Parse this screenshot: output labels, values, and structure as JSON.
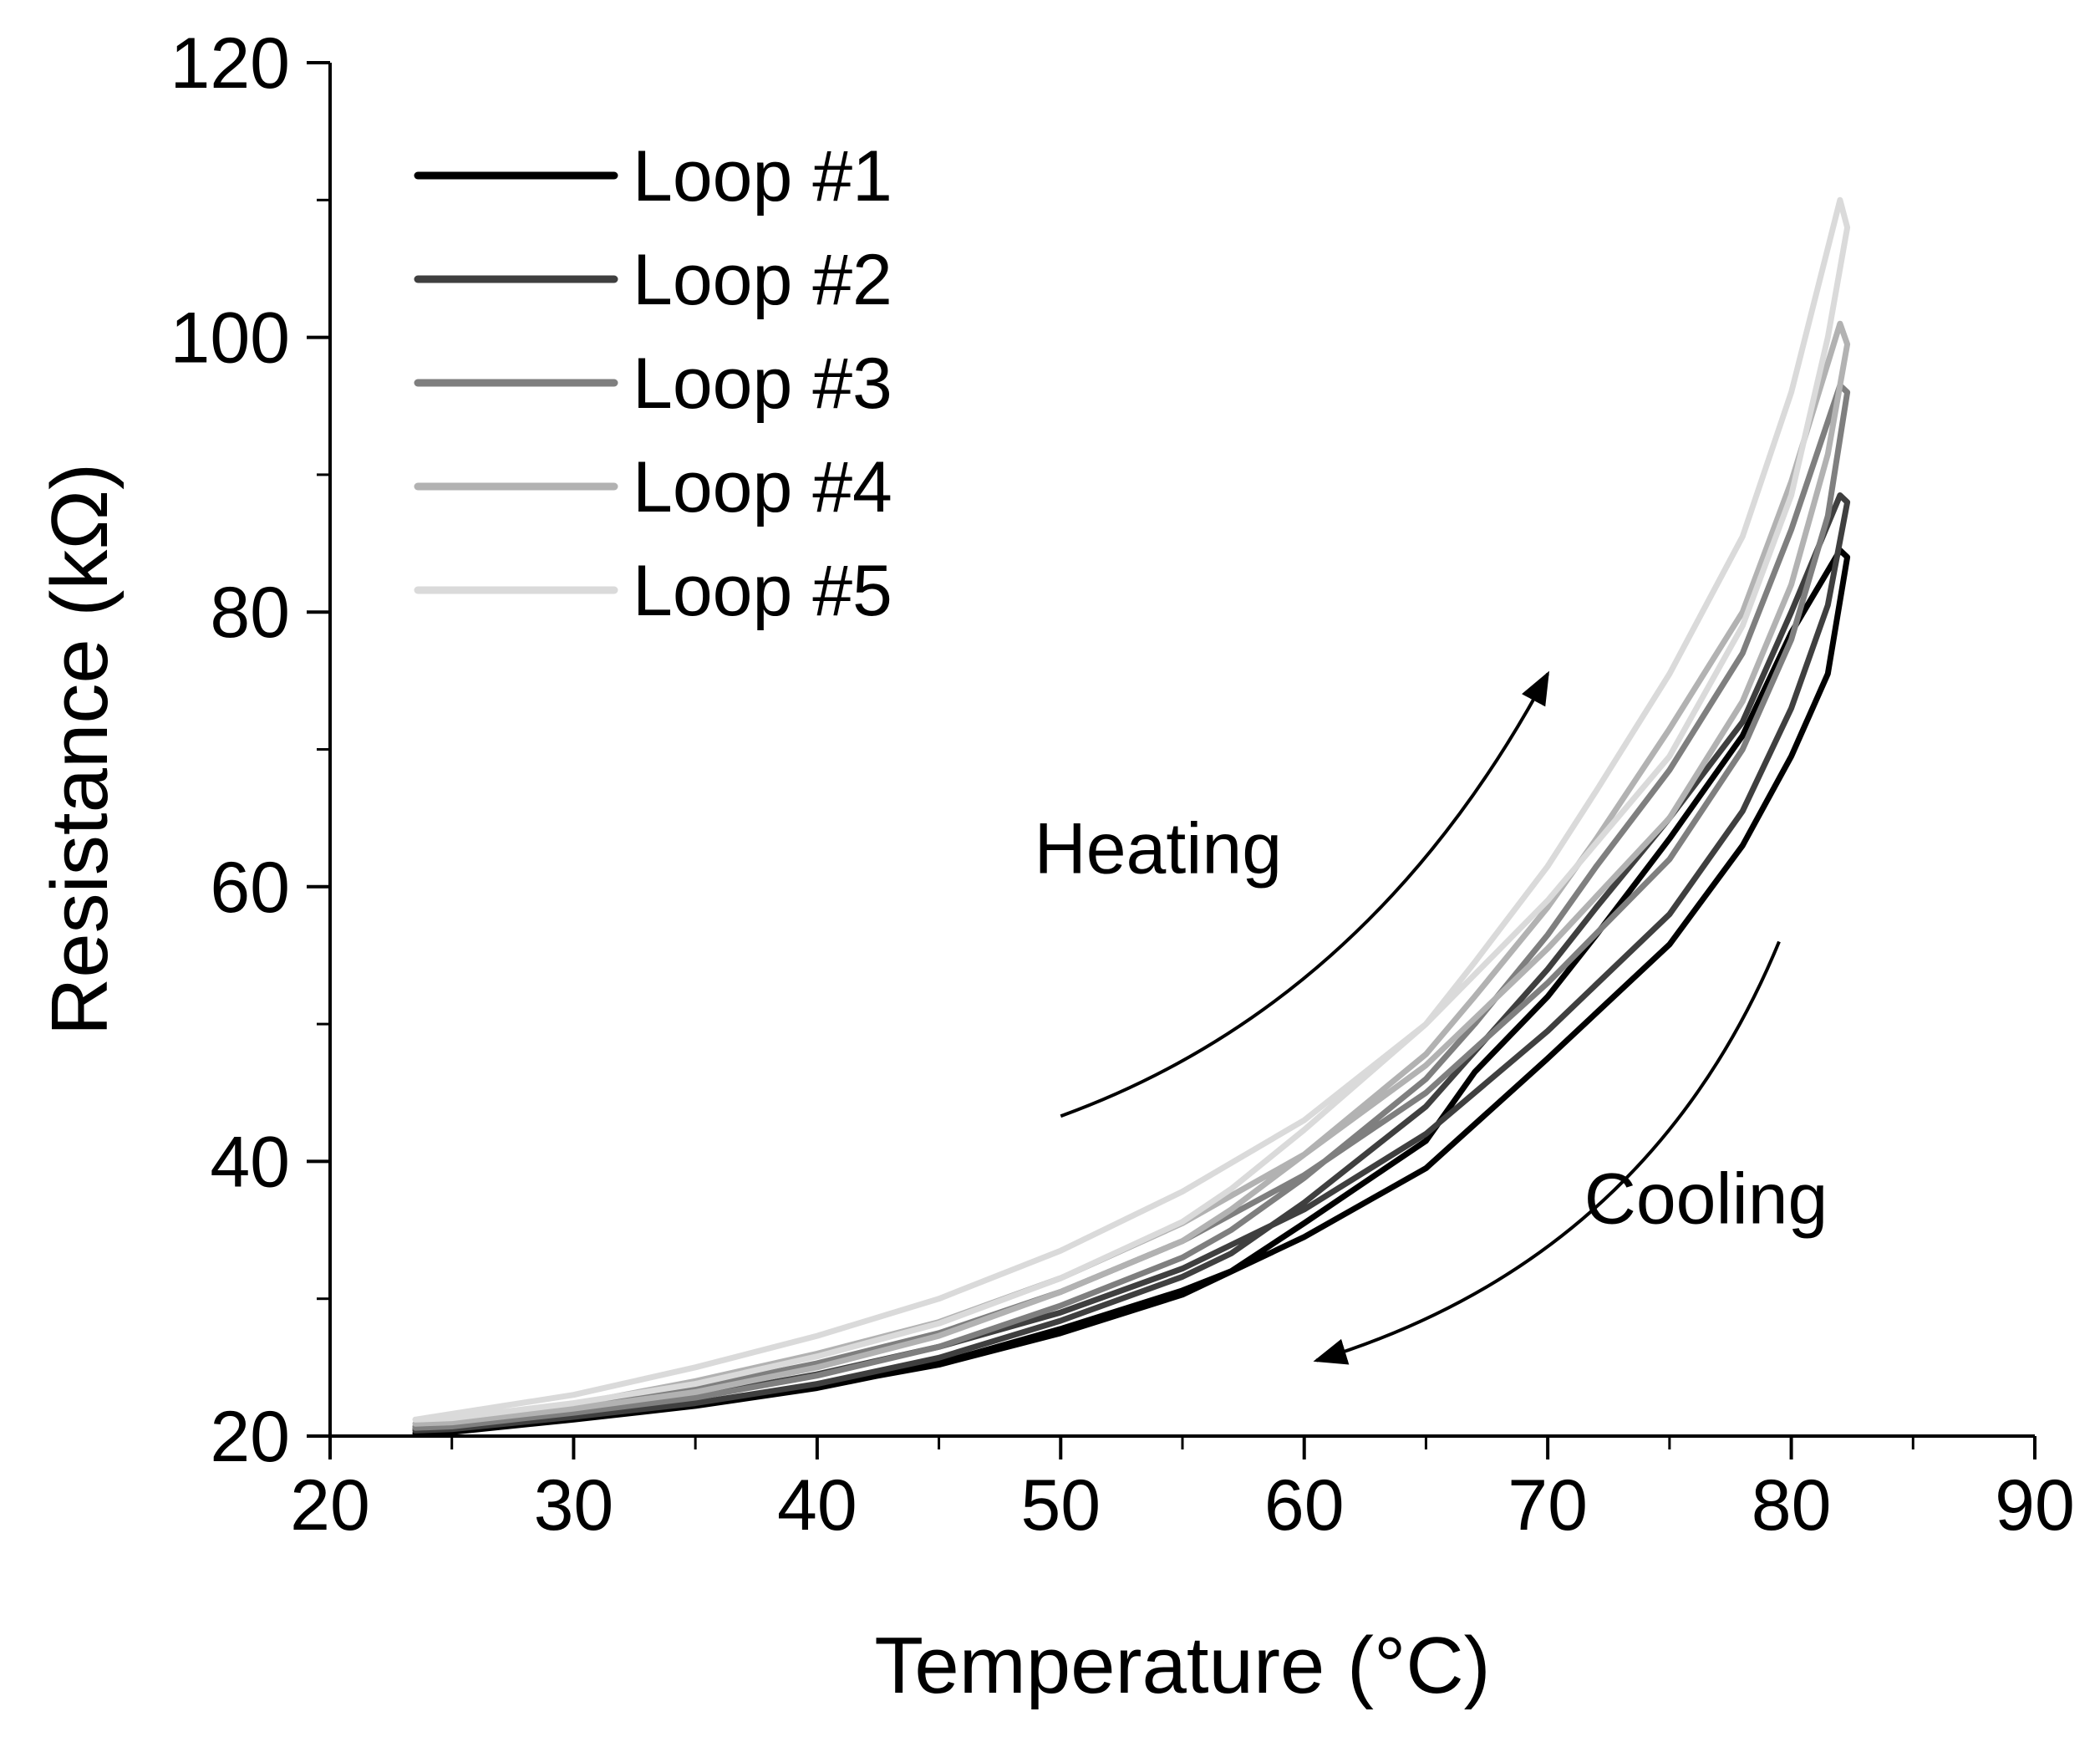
{
  "chart_data": {
    "type": "line",
    "title": "",
    "xlabel": "Temperature (°C)",
    "ylabel": "Resistance (kΩ)",
    "xlim": [
      20,
      90
    ],
    "ylim": [
      20,
      120
    ],
    "xticks": [
      20,
      30,
      40,
      50,
      60,
      70,
      80,
      90
    ],
    "yticks": [
      20,
      40,
      60,
      80,
      100,
      120
    ],
    "grid": false,
    "legend_position": "top-left",
    "series": [
      {
        "name": "Loop #1",
        "color": "#000000",
        "x": [
          23.5,
          30,
          35,
          40,
          45,
          50,
          55,
          60,
          65,
          70,
          75,
          78,
          80,
          81.5,
          82.3,
          82,
          80,
          78,
          75,
          72,
          70,
          67,
          65,
          60,
          57,
          55,
          50,
          45,
          40,
          35,
          30,
          25,
          23.5
        ],
        "y": [
          20.2,
          21.2,
          22.3,
          23.6,
          25.2,
          27.5,
          30.3,
          34.5,
          39.5,
          47.5,
          55.8,
          63,
          69.5,
          75.5,
          84,
          84.5,
          78.5,
          71,
          63.5,
          56.5,
          52,
          46.5,
          41.5,
          35.5,
          32,
          30.6,
          27.8,
          25.3,
          23.5,
          22.2,
          21.2,
          20.3,
          20.2
        ]
      },
      {
        "name": "Loop #2",
        "color": "#3f3f3f",
        "x": [
          23.5,
          30,
          35,
          40,
          45,
          50,
          55,
          60,
          65,
          70,
          75,
          78,
          80,
          81.5,
          82.3,
          82,
          80,
          78,
          75,
          72,
          70,
          67,
          65,
          60,
          57,
          55,
          50,
          45,
          40,
          35,
          30,
          25,
          23.5
        ],
        "y": [
          20.5,
          21.6,
          22.9,
          24.5,
          26.5,
          29,
          32.2,
          36.5,
          42,
          49.5,
          58,
          65.5,
          73,
          80.5,
          88,
          88.5,
          80,
          72,
          65,
          58.5,
          54,
          48,
          44,
          37,
          33.3,
          31.6,
          28.4,
          25.7,
          23.8,
          22.4,
          21.4,
          20.5,
          20.4
        ]
      },
      {
        "name": "Loop #3",
        "color": "#7f7f7f",
        "x": [
          23.5,
          30,
          35,
          40,
          45,
          50,
          55,
          60,
          65,
          70,
          75,
          78,
          80,
          81.5,
          82.3,
          82,
          80,
          78,
          75,
          72,
          70,
          67,
          65,
          60,
          57,
          55,
          50,
          45,
          40,
          35,
          30,
          25,
          23.5
        ],
        "y": [
          20.7,
          22,
          23.5,
          25.3,
          27.5,
          30.5,
          34.2,
          39,
          45,
          53,
          62,
          70,
          78,
          87,
          96,
          96.5,
          86,
          77,
          68.5,
          61.5,
          56.5,
          50,
          46,
          38.8,
          35,
          33,
          29.5,
          26.5,
          24.4,
          22.8,
          21.7,
          20.7,
          20.6
        ]
      },
      {
        "name": "Loop #4",
        "color": "#b2b2b2",
        "x": [
          23.5,
          30,
          35,
          40,
          45,
          50,
          55,
          60,
          65,
          70,
          75,
          78,
          80,
          81.5,
          82.3,
          82,
          80,
          78,
          75,
          72,
          70,
          67,
          65,
          60,
          57,
          55,
          50,
          45,
          40,
          35,
          30,
          25,
          23.5
        ],
        "y": [
          20.9,
          22.3,
          24,
          26,
          28.3,
          31.5,
          35.5,
          40.5,
          47,
          55.5,
          65,
          73.5,
          82,
          91.5,
          99.5,
          101,
          89.5,
          80,
          71.5,
          63.5,
          58.5,
          52,
          47.8,
          40.5,
          36.5,
          34.2,
          30.5,
          27.3,
          25,
          23.2,
          22,
          21,
          20.9
        ]
      },
      {
        "name": "Loop #5",
        "color": "#dadada",
        "x": [
          23.5,
          30,
          35,
          40,
          45,
          50,
          55,
          60,
          65,
          70,
          75,
          78,
          80,
          81.5,
          82.3,
          82,
          80,
          78,
          75,
          72,
          70,
          67,
          65,
          60,
          57,
          55,
          50,
          45,
          40,
          35,
          30,
          25,
          23.5
        ],
        "y": [
          21.2,
          23,
          25,
          27.3,
          30,
          33.5,
          37.8,
          43,
          50,
          59,
          69.5,
          79,
          88.5,
          100,
          108,
          110,
          96,
          85.5,
          75.5,
          67,
          61.5,
          54.5,
          50,
          42.3,
          38,
          35.6,
          31.5,
          28.2,
          25.8,
          23.8,
          22.4,
          21.3,
          21.2
        ]
      }
    ],
    "annotations": [
      {
        "text": "Heating",
        "x": 54,
        "y": 61
      },
      {
        "text": "Cooling",
        "x": 76.5,
        "y": 35.5
      }
    ],
    "arrows": [
      {
        "label": "heating",
        "from": [
          50,
          43.3
        ],
        "to": [
          70,
          75.5
        ]
      },
      {
        "label": "cooling",
        "from": [
          79.5,
          56
        ],
        "to": [
          60.5,
          25.5
        ]
      }
    ]
  }
}
